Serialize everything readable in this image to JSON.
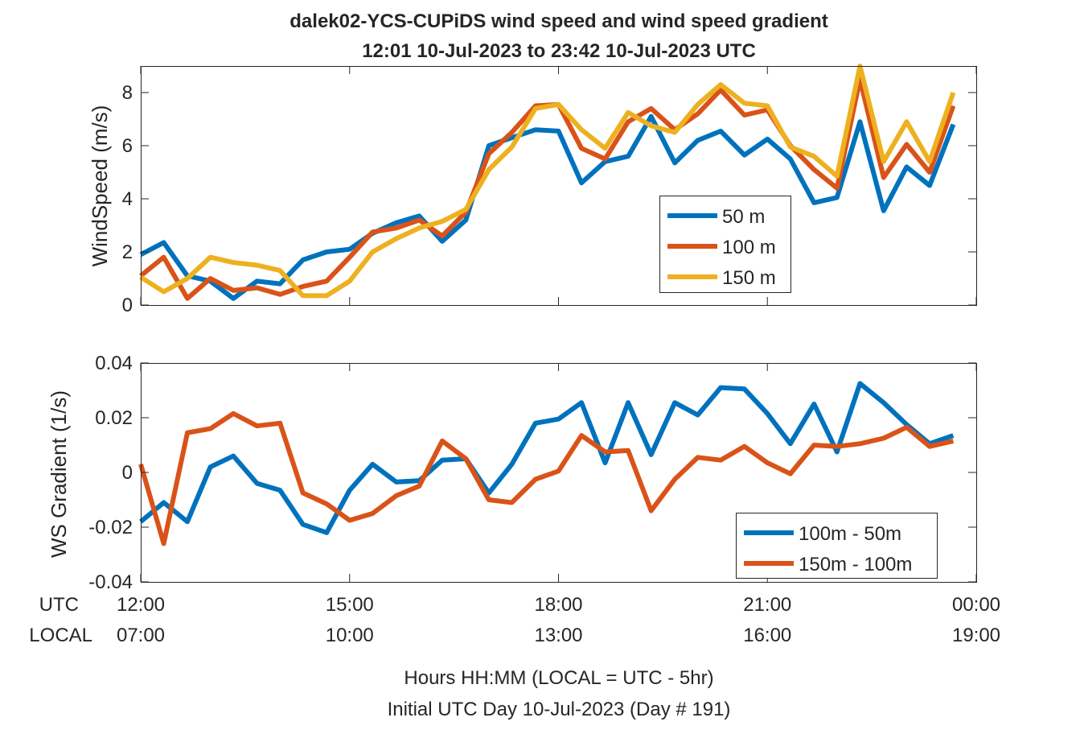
{
  "figure": {
    "title_line1": "dalek02-YCS-CUPiDS  wind speed and wind speed gradient",
    "title_line2": "12:01 10-Jul-2023 to 23:42 10-Jul-2023  UTC",
    "row_label_utc": "UTC",
    "row_label_local": "LOCAL",
    "xlabel_line1": "Hours HH:MM  (LOCAL = UTC - 5hr)",
    "xlabel_line2": "Initial UTC Day 10-Jul-2023 (Day # 191)",
    "utc_ticks": [
      "12:00",
      "15:00",
      "18:00",
      "21:00",
      "00:00"
    ],
    "local_ticks": [
      "07:00",
      "10:00",
      "13:00",
      "16:00",
      "19:00"
    ]
  },
  "chart_data": [
    {
      "type": "line",
      "ylabel": "WindSpeed (m/s)",
      "xlim": [
        12.0,
        24.0
      ],
      "ylim": [
        0,
        9
      ],
      "yticks": [
        0,
        2,
        4,
        6,
        8
      ],
      "ytick_labels": [
        "0",
        "2",
        "4",
        "6",
        "8"
      ],
      "x_ticks": [
        12,
        15,
        18,
        21,
        24
      ],
      "grid": false,
      "legend_position": "lower-right inside",
      "x": [
        12.0,
        12.33,
        12.67,
        13.0,
        13.33,
        13.67,
        14.0,
        14.33,
        14.67,
        15.0,
        15.33,
        15.67,
        16.0,
        16.33,
        16.67,
        17.0,
        17.33,
        17.67,
        18.0,
        18.33,
        18.67,
        19.0,
        19.33,
        19.67,
        20.0,
        20.33,
        20.67,
        21.0,
        21.33,
        21.67,
        22.0,
        22.33,
        22.67,
        23.0,
        23.33,
        23.67
      ],
      "series": [
        {
          "name": "50 m",
          "color": "#0072BD",
          "values": [
            1.9,
            2.35,
            1.1,
            0.9,
            0.25,
            0.9,
            0.8,
            1.7,
            2.0,
            2.1,
            2.7,
            3.1,
            3.35,
            2.4,
            3.2,
            6.0,
            6.3,
            6.6,
            6.55,
            4.6,
            5.4,
            5.6,
            7.1,
            5.35,
            6.2,
            6.55,
            5.65,
            6.25,
            5.5,
            3.85,
            4.05,
            6.9,
            3.55,
            5.2,
            4.5,
            6.8
          ]
        },
        {
          "name": "100 m",
          "color": "#D95319",
          "values": [
            1.1,
            1.8,
            0.25,
            1.0,
            0.55,
            0.65,
            0.4,
            0.7,
            0.9,
            1.8,
            2.75,
            2.9,
            3.2,
            2.6,
            3.5,
            5.7,
            6.5,
            7.5,
            7.55,
            5.9,
            5.5,
            6.9,
            7.4,
            6.6,
            7.2,
            8.1,
            7.15,
            7.35,
            6.0,
            5.1,
            4.4,
            8.5,
            4.8,
            6.05,
            5.0,
            7.5
          ]
        },
        {
          "name": "150 m",
          "color": "#EDB120",
          "values": [
            1.05,
            0.5,
            1.0,
            1.8,
            1.6,
            1.5,
            1.3,
            0.35,
            0.35,
            0.9,
            2.0,
            2.5,
            2.9,
            3.15,
            3.6,
            5.1,
            5.95,
            7.4,
            7.55,
            6.6,
            5.9,
            7.25,
            6.75,
            6.5,
            7.55,
            8.3,
            7.6,
            7.5,
            5.95,
            5.6,
            4.85,
            9.0,
            5.4,
            6.9,
            5.4,
            8.0
          ]
        }
      ]
    },
    {
      "type": "line",
      "ylabel": "WS Gradient (1/s)",
      "xlim": [
        12.0,
        24.0
      ],
      "ylim": [
        -0.04,
        0.04
      ],
      "yticks": [
        -0.04,
        -0.02,
        0,
        0.02,
        0.04
      ],
      "ytick_labels": [
        "-0.04",
        "-0.02",
        "0",
        "0.02",
        "0.04"
      ],
      "x_ticks": [
        12,
        15,
        18,
        21,
        24
      ],
      "grid": false,
      "legend_position": "lower-right inside",
      "x": [
        12.0,
        12.33,
        12.67,
        13.0,
        13.33,
        13.67,
        14.0,
        14.33,
        14.67,
        15.0,
        15.33,
        15.67,
        16.0,
        16.33,
        16.67,
        17.0,
        17.33,
        17.67,
        18.0,
        18.33,
        18.67,
        19.0,
        19.33,
        19.67,
        20.0,
        20.33,
        20.67,
        21.0,
        21.33,
        21.67,
        22.0,
        22.33,
        22.67,
        23.0,
        23.33,
        23.67
      ],
      "series": [
        {
          "name": "100m - 50m",
          "color": "#0072BD",
          "values": [
            -0.018,
            -0.011,
            -0.018,
            0.002,
            0.006,
            -0.004,
            -0.0065,
            -0.019,
            -0.022,
            -0.0065,
            0.003,
            -0.0035,
            -0.003,
            0.0045,
            0.005,
            -0.0075,
            0.003,
            0.018,
            0.0195,
            0.0255,
            0.0035,
            0.0255,
            0.0065,
            0.0255,
            0.021,
            0.031,
            0.0305,
            0.0215,
            0.0105,
            0.025,
            0.0075,
            0.0325,
            0.0255,
            0.0175,
            0.0105,
            0.0135
          ]
        },
        {
          "name": "150m - 100m",
          "color": "#D95319",
          "values": [
            0.003,
            -0.026,
            0.0145,
            0.016,
            0.0215,
            0.017,
            0.018,
            -0.0075,
            -0.0115,
            -0.0175,
            -0.015,
            -0.0085,
            -0.005,
            0.0115,
            0.005,
            -0.01,
            -0.011,
            -0.0025,
            0.0005,
            0.0135,
            0.0075,
            0.008,
            -0.014,
            -0.0025,
            0.0055,
            0.0045,
            0.0095,
            0.0035,
            -0.0005,
            0.01,
            0.0095,
            0.0105,
            0.0125,
            0.0165,
            0.0095,
            0.0115
          ]
        }
      ]
    }
  ]
}
